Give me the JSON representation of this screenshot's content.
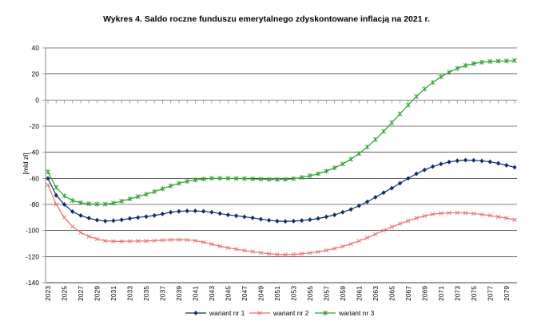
{
  "chart_data": {
    "type": "line",
    "title": "Wykres 4. Saldo roczne funduszu emerytalnego zdyskontowane inflacją na 2021 r.",
    "xlabel": "",
    "ylabel": "[mld zł]",
    "ylim": [
      -140,
      40
    ],
    "yticks": [
      40,
      20,
      0,
      -20,
      -40,
      -60,
      -80,
      -100,
      -120,
      -140
    ],
    "x": [
      2023,
      2024,
      2025,
      2026,
      2027,
      2028,
      2029,
      2030,
      2031,
      2032,
      2033,
      2034,
      2035,
      2036,
      2037,
      2038,
      2039,
      2040,
      2041,
      2042,
      2043,
      2044,
      2045,
      2046,
      2047,
      2048,
      2049,
      2050,
      2051,
      2052,
      2053,
      2054,
      2055,
      2056,
      2057,
      2058,
      2059,
      2060,
      2061,
      2062,
      2063,
      2064,
      2065,
      2066,
      2067,
      2068,
      2069,
      2070,
      2071,
      2072,
      2073,
      2074,
      2075,
      2076,
      2077,
      2078,
      2079,
      2080
    ],
    "xticklabels": [
      "2023",
      "2025",
      "2027",
      "2029",
      "2031",
      "2033",
      "2035",
      "2037",
      "2039",
      "2041",
      "2043",
      "2045",
      "2047",
      "2049",
      "2051",
      "2053",
      "2055",
      "2057",
      "2059",
      "2061",
      "2063",
      "2065",
      "2067",
      "2069",
      "2071",
      "2073",
      "2075",
      "2077",
      "2079"
    ],
    "grid": "horizontal",
    "legend_position": "bottom",
    "series": [
      {
        "name": "wariant nr 1",
        "color": "#0b2f6b",
        "marker": "diamond",
        "values": [
          -60,
          -73,
          -80,
          -85.5,
          -88.5,
          -90.5,
          -92,
          -92.8,
          -92.5,
          -91.8,
          -90.8,
          -90,
          -89.3,
          -88.5,
          -87.3,
          -86,
          -85.3,
          -85,
          -85,
          -85.3,
          -86,
          -87,
          -88,
          -88.7,
          -89.5,
          -90.3,
          -91.3,
          -92.2,
          -92.8,
          -93,
          -92.8,
          -92.3,
          -91.7,
          -90.8,
          -89.5,
          -88,
          -86,
          -83.8,
          -81,
          -78,
          -74.5,
          -71,
          -67.5,
          -63.8,
          -60,
          -56.5,
          -53.5,
          -51,
          -49,
          -47.5,
          -46.5,
          -46,
          -46.2,
          -46.6,
          -47.3,
          -48.5,
          -50,
          -51.5
        ]
      },
      {
        "name": "wariant nr 2",
        "color": "#e87070",
        "marker": "x",
        "values": [
          -65,
          -80,
          -90,
          -97,
          -101.5,
          -104.5,
          -106.5,
          -108,
          -108.3,
          -108.3,
          -108.2,
          -108.1,
          -108,
          -107.8,
          -107.4,
          -107.2,
          -107.1,
          -107.2,
          -107.8,
          -109,
          -110.5,
          -112,
          -113.3,
          -114.3,
          -115.3,
          -116.2,
          -117,
          -117.8,
          -118.3,
          -118.5,
          -118.3,
          -117.8,
          -117.2,
          -116.3,
          -115.2,
          -113.8,
          -112.2,
          -110.3,
          -108,
          -105.5,
          -102.8,
          -100,
          -97.3,
          -94.8,
          -92.5,
          -90.5,
          -88.8,
          -87.5,
          -86.8,
          -86.5,
          -86.4,
          -86.6,
          -87,
          -87.7,
          -88.5,
          -89.5,
          -90.5,
          -91.8
        ]
      },
      {
        "name": "wariant nr 3",
        "color": "#2ca02c",
        "marker": "star",
        "values": [
          -55,
          -67,
          -73.5,
          -77,
          -78.7,
          -79.5,
          -79.8,
          -79.8,
          -79,
          -77.5,
          -75.8,
          -74,
          -72.2,
          -70.2,
          -68,
          -65.8,
          -63.8,
          -62.3,
          -61.2,
          -60.5,
          -60,
          -60,
          -60,
          -60.1,
          -60.2,
          -60.4,
          -60.6,
          -60.8,
          -60.9,
          -60.8,
          -60.3,
          -59.3,
          -58,
          -56.5,
          -54.5,
          -52,
          -49,
          -45.3,
          -41,
          -36,
          -30.3,
          -24,
          -17.3,
          -10.5,
          -3.8,
          2.7,
          8.5,
          13.5,
          17.8,
          21.3,
          24.3,
          26.5,
          28,
          29,
          29.6,
          29.9,
          30,
          30.3
        ]
      }
    ]
  }
}
